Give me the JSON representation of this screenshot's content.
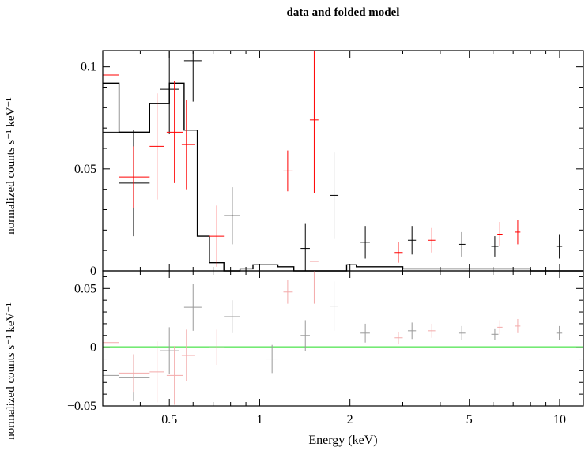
{
  "chart_data": [
    {
      "type": "scatter",
      "panel": "data",
      "title": "data and folded model",
      "ylabel": "normalized counts s⁻¹ keV⁻¹",
      "xlabel": "",
      "xscale": "log",
      "xlim": [
        0.3,
        12
      ],
      "ylim": [
        0,
        0.108
      ],
      "yticks": [
        0,
        0.05,
        0.1
      ],
      "ytick_labels": [
        "0",
        "0.05",
        "0.1"
      ],
      "series": [
        {
          "color": "#000000",
          "points": [
            {
              "x": 0.29,
              "xlo": 0.27,
              "xhi": 0.34,
              "y": 0.068,
              "yerr": 0.027
            },
            {
              "x": 0.38,
              "xlo": 0.34,
              "xhi": 0.43,
              "y": 0.043,
              "yerr": 0.026
            },
            {
              "x": 0.5,
              "xlo": 0.465,
              "xhi": 0.54,
              "y": 0.089,
              "yerr": 0.022
            },
            {
              "x": 0.6,
              "xlo": 0.56,
              "xhi": 0.64,
              "y": 0.103,
              "yerr": 0.02
            },
            {
              "x": 0.81,
              "xlo": 0.76,
              "xhi": 0.86,
              "y": 0.027,
              "yerr": 0.014
            },
            {
              "x": 1.42,
              "xlo": 1.37,
              "xhi": 1.47,
              "y": 0.011,
              "yerr": 0.012
            },
            {
              "x": 1.77,
              "xlo": 1.72,
              "xhi": 1.83,
              "y": 0.037,
              "yerr": 0.021
            },
            {
              "x": 2.25,
              "xlo": 2.17,
              "xhi": 2.33,
              "y": 0.014,
              "yerr": 0.008
            },
            {
              "x": 3.22,
              "xlo": 3.12,
              "xhi": 3.32,
              "y": 0.015,
              "yerr": 0.007
            },
            {
              "x": 4.72,
              "xlo": 4.6,
              "xhi": 4.85,
              "y": 0.013,
              "yerr": 0.006
            },
            {
              "x": 6.08,
              "xlo": 5.92,
              "xhi": 6.25,
              "y": 0.012,
              "yerr": 0.005
            },
            {
              "x": 9.98,
              "xlo": 9.75,
              "xhi": 10.2,
              "y": 0.012,
              "yerr": 0.006
            }
          ]
        },
        {
          "color": "#ff0000",
          "points": [
            {
              "x": 0.29,
              "xlo": 0.27,
              "xhi": 0.34,
              "y": 0.096,
              "yerr": 0.012
            },
            {
              "x": 0.38,
              "xlo": 0.34,
              "xhi": 0.43,
              "y": 0.046,
              "yerr": 0.015
            },
            {
              "x": 0.455,
              "xlo": 0.43,
              "xhi": 0.48,
              "y": 0.061,
              "yerr": 0.026
            },
            {
              "x": 0.52,
              "xlo": 0.49,
              "xhi": 0.555,
              "y": 0.068,
              "yerr": 0.025
            },
            {
              "x": 0.57,
              "xlo": 0.55,
              "xhi": 0.61,
              "y": 0.062,
              "yerr": 0.022
            },
            {
              "x": 0.72,
              "xlo": 0.68,
              "xhi": 0.76,
              "y": 0.017,
              "yerr": 0.015
            },
            {
              "x": 1.24,
              "xlo": 1.2,
              "xhi": 1.29,
              "y": 0.049,
              "yerr": 0.01
            },
            {
              "x": 1.52,
              "xlo": 1.47,
              "xhi": 1.57,
              "y": 0.074,
              "yerr": 0.036
            },
            {
              "x": 2.9,
              "xlo": 2.82,
              "xhi": 3.0,
              "y": 0.009,
              "yerr": 0.005
            },
            {
              "x": 3.75,
              "xlo": 3.65,
              "xhi": 3.85,
              "y": 0.015,
              "yerr": 0.006
            },
            {
              "x": 6.32,
              "xlo": 6.2,
              "xhi": 6.45,
              "y": 0.018,
              "yerr": 0.006
            },
            {
              "x": 7.25,
              "xlo": 7.1,
              "xhi": 7.4,
              "y": 0.019,
              "yerr": 0.006
            }
          ]
        }
      ],
      "model": {
        "color": "#000000",
        "edges": [
          0.27,
          0.34,
          0.43,
          0.5,
          0.56,
          0.62,
          0.68,
          0.76,
          0.86,
          0.95,
          1.05,
          1.15,
          1.3,
          1.5,
          1.7,
          1.95,
          2.1,
          2.4,
          3.0,
          4.0,
          6.0,
          8.0,
          12.0
        ],
        "values": [
          0.092,
          0.068,
          0.082,
          0.092,
          0.069,
          0.017,
          0.004,
          0.0,
          0.001,
          0.003,
          0.003,
          0.002,
          0.0,
          0.0,
          0.0,
          0.003,
          0.002,
          0.002,
          0.001,
          0.001,
          0.001,
          0.0
        ]
      }
    },
    {
      "type": "scatter",
      "panel": "residuals",
      "title": "",
      "ylabel": "normalized counts s⁻¹ keV⁻¹",
      "xlabel": "Energy (keV)",
      "xscale": "log",
      "xlim": [
        0.3,
        12
      ],
      "ylim": [
        -0.05,
        0.065
      ],
      "xticks": [
        0.5,
        1,
        2,
        5,
        10
      ],
      "xtick_labels": [
        "0.5",
        "1",
        "2",
        "5",
        "10"
      ],
      "yticks": [
        -0.05,
        0,
        0.05
      ],
      "ytick_labels": [
        "−0.05",
        "0",
        "0.05"
      ],
      "zero_line_color": "#22dd22",
      "series": [
        {
          "color": "#999999",
          "points": [
            {
              "x": 0.3,
              "xlo": 0.27,
              "xhi": 0.34,
              "y": -0.024,
              "yerr": 0.02
            },
            {
              "x": 0.38,
              "xlo": 0.34,
              "xhi": 0.43,
              "y": -0.026,
              "yerr": 0.02
            },
            {
              "x": 0.5,
              "xlo": 0.465,
              "xhi": 0.54,
              "y": -0.003,
              "yerr": 0.02
            },
            {
              "x": 0.6,
              "xlo": 0.56,
              "xhi": 0.64,
              "y": 0.034,
              "yerr": 0.02
            },
            {
              "x": 0.81,
              "xlo": 0.76,
              "xhi": 0.86,
              "y": 0.026,
              "yerr": 0.014
            },
            {
              "x": 1.1,
              "xlo": 1.05,
              "xhi": 1.15,
              "y": -0.01,
              "yerr": 0.012
            },
            {
              "x": 1.42,
              "xlo": 1.37,
              "xhi": 1.47,
              "y": 0.01,
              "yerr": 0.013
            },
            {
              "x": 1.77,
              "xlo": 1.72,
              "xhi": 1.83,
              "y": 0.035,
              "yerr": 0.021
            },
            {
              "x": 2.25,
              "xlo": 2.17,
              "xhi": 2.33,
              "y": 0.012,
              "yerr": 0.008
            },
            {
              "x": 3.22,
              "xlo": 3.12,
              "xhi": 3.32,
              "y": 0.014,
              "yerr": 0.007
            },
            {
              "x": 4.72,
              "xlo": 4.6,
              "xhi": 4.85,
              "y": 0.012,
              "yerr": 0.006
            },
            {
              "x": 6.08,
              "xlo": 5.92,
              "xhi": 6.25,
              "y": 0.011,
              "yerr": 0.005
            },
            {
              "x": 9.98,
              "xlo": 9.75,
              "xhi": 10.2,
              "y": 0.012,
              "yerr": 0.006
            }
          ]
        },
        {
          "color": "#f3aaaa",
          "points": [
            {
              "x": 0.29,
              "xlo": 0.27,
              "xhi": 0.34,
              "y": 0.004,
              "yerr": 0.014
            },
            {
              "x": 0.38,
              "xlo": 0.34,
              "xhi": 0.43,
              "y": -0.022,
              "yerr": 0.016
            },
            {
              "x": 0.455,
              "xlo": 0.43,
              "xhi": 0.48,
              "y": -0.021,
              "yerr": 0.026
            },
            {
              "x": 0.52,
              "xlo": 0.49,
              "xhi": 0.555,
              "y": -0.024,
              "yerr": 0.025
            },
            {
              "x": 0.57,
              "xlo": 0.55,
              "xhi": 0.61,
              "y": -0.007,
              "yerr": 0.022
            },
            {
              "x": 0.72,
              "xlo": 0.68,
              "xhi": 0.76,
              "y": 0.0,
              "yerr": 0.015
            },
            {
              "x": 1.24,
              "xlo": 1.2,
              "xhi": 1.29,
              "y": 0.047,
              "yerr": 0.01
            },
            {
              "x": 1.52,
              "xlo": 1.47,
              "xhi": 1.57,
              "y": 0.073,
              "yerr": 0.036
            },
            {
              "x": 2.9,
              "xlo": 2.82,
              "xhi": 3.0,
              "y": 0.008,
              "yerr": 0.005
            },
            {
              "x": 3.75,
              "xlo": 3.65,
              "xhi": 3.85,
              "y": 0.014,
              "yerr": 0.006
            },
            {
              "x": 6.32,
              "xlo": 6.2,
              "xhi": 6.45,
              "y": 0.017,
              "yerr": 0.006
            },
            {
              "x": 7.25,
              "xlo": 7.1,
              "xhi": 7.4,
              "y": 0.018,
              "yerr": 0.006
            }
          ]
        }
      ]
    }
  ]
}
